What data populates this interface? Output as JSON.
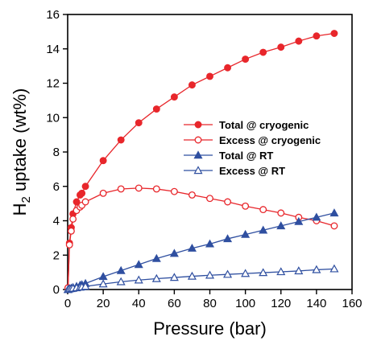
{
  "chart_data": {
    "type": "line",
    "xlabel": "Pressure (bar)",
    "ylabel_main": "H",
    "ylabel_sub": "2",
    "ylabel_rest": " uptake (wt%)",
    "xlim": [
      0,
      160
    ],
    "ylim": [
      0,
      16
    ],
    "xticks": [
      0,
      20,
      40,
      60,
      80,
      100,
      120,
      140,
      160
    ],
    "yticks": [
      0,
      2,
      4,
      6,
      8,
      10,
      12,
      14,
      16
    ],
    "grid": false,
    "legend_position": "center-right",
    "series": [
      {
        "name": "Total @ cryogenic",
        "color": "#e8262b",
        "marker": "circle",
        "filled": true,
        "x": [
          0.2,
          1,
          2,
          3,
          5,
          7,
          8,
          10,
          20,
          30,
          40,
          50,
          60,
          70,
          80,
          90,
          100,
          110,
          120,
          130,
          140,
          150
        ],
        "y": [
          0.1,
          2.7,
          3.6,
          4.4,
          5.1,
          5.5,
          5.6,
          6.0,
          7.5,
          8.7,
          9.7,
          10.5,
          11.2,
          11.9,
          12.4,
          12.9,
          13.4,
          13.8,
          14.1,
          14.45,
          14.75,
          14.9
        ]
      },
      {
        "name": "Excess @ cryogenic",
        "color": "#e8262b",
        "marker": "circle",
        "filled": false,
        "x": [
          0.2,
          1,
          2,
          3,
          5,
          7,
          8,
          10,
          20,
          30,
          40,
          50,
          60,
          70,
          80,
          90,
          100,
          110,
          120,
          130,
          140,
          150
        ],
        "y": [
          0.1,
          2.6,
          3.4,
          4.1,
          4.6,
          4.8,
          4.9,
          5.1,
          5.6,
          5.85,
          5.9,
          5.85,
          5.7,
          5.5,
          5.3,
          5.1,
          4.85,
          4.65,
          4.45,
          4.2,
          4.0,
          3.7
        ]
      },
      {
        "name": "Total @ RT",
        "color": "#2f4fa0",
        "marker": "triangle",
        "filled": true,
        "x": [
          0.2,
          1,
          2,
          3,
          5,
          7,
          8,
          10,
          20,
          30,
          40,
          50,
          60,
          70,
          80,
          90,
          100,
          110,
          120,
          130,
          140,
          150
        ],
        "y": [
          0.0,
          0.05,
          0.08,
          0.12,
          0.18,
          0.25,
          0.28,
          0.35,
          0.75,
          1.1,
          1.45,
          1.8,
          2.1,
          2.4,
          2.65,
          2.95,
          3.2,
          3.45,
          3.7,
          3.95,
          4.2,
          4.45
        ]
      },
      {
        "name": "Excess @ RT",
        "color": "#2f4fa0",
        "marker": "triangle",
        "filled": false,
        "x": [
          0.2,
          1,
          2,
          3,
          5,
          7,
          8,
          10,
          20,
          30,
          40,
          50,
          60,
          70,
          80,
          90,
          100,
          110,
          120,
          130,
          140,
          150
        ],
        "y": [
          0.0,
          0.03,
          0.05,
          0.07,
          0.1,
          0.13,
          0.15,
          0.18,
          0.32,
          0.45,
          0.55,
          0.63,
          0.7,
          0.77,
          0.83,
          0.88,
          0.93,
          0.98,
          1.03,
          1.08,
          1.15,
          1.2
        ]
      }
    ]
  }
}
